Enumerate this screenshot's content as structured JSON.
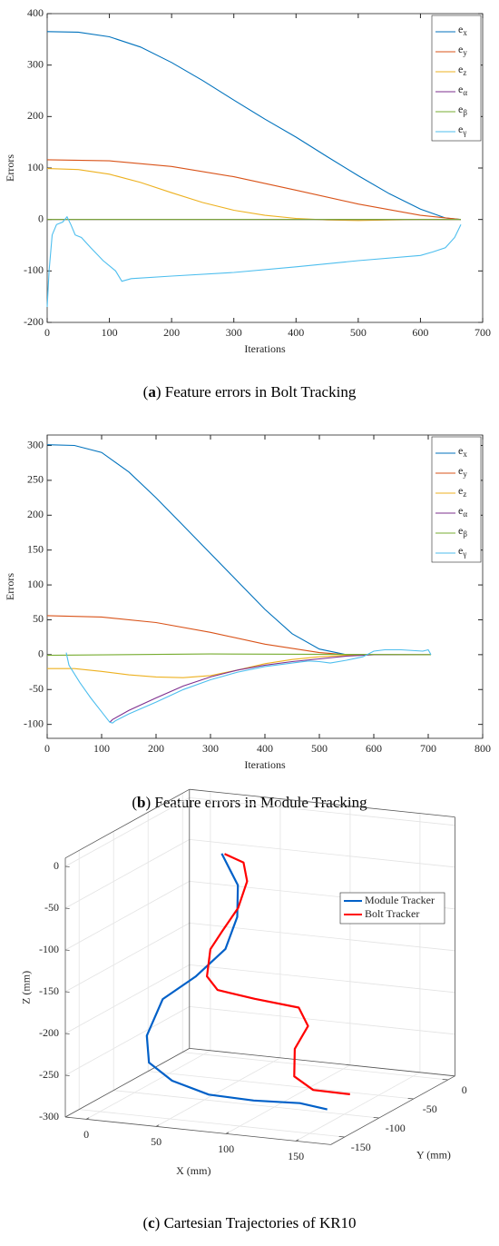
{
  "chart_data": [
    {
      "type": "line",
      "xlabel": "Iterations",
      "ylabel": "Errors",
      "caption": "(a) Feature errors in Bolt Tracking",
      "xlim": [
        0,
        700
      ],
      "xticks": [
        0,
        100,
        200,
        300,
        400,
        500,
        600,
        700
      ],
      "ylim": [
        -200,
        400
      ],
      "yticks": [
        -200,
        -100,
        0,
        100,
        200,
        300,
        400
      ],
      "grid": false,
      "legend": "northeast",
      "series": [
        {
          "name": "ex",
          "color": "#0072bd",
          "x": [
            0,
            50,
            100,
            150,
            200,
            250,
            300,
            350,
            400,
            450,
            500,
            550,
            600,
            640,
            665
          ],
          "values": [
            365,
            364,
            355,
            335,
            305,
            270,
            232,
            195,
            160,
            122,
            85,
            50,
            20,
            3,
            0
          ]
        },
        {
          "name": "ey",
          "color": "#d95319",
          "x": [
            0,
            100,
            200,
            300,
            400,
            500,
            600,
            665
          ],
          "values": [
            116,
            114,
            103,
            83,
            57,
            30,
            8,
            0
          ]
        },
        {
          "name": "ez",
          "color": "#edb120",
          "x": [
            0,
            50,
            100,
            150,
            200,
            250,
            300,
            350,
            400,
            450,
            500,
            550,
            600,
            665
          ],
          "values": [
            99,
            97,
            88,
            72,
            52,
            33,
            18,
            8,
            2,
            -1,
            -2,
            -1,
            0,
            0
          ]
        },
        {
          "name": "eα",
          "color": "#7e2f8e",
          "x": [
            0,
            665
          ],
          "values": [
            0,
            0
          ]
        },
        {
          "name": "eβ",
          "color": "#77ac30",
          "x": [
            0,
            665
          ],
          "values": [
            0,
            0
          ]
        },
        {
          "name": "eγ",
          "color": "#4dbeee",
          "x": [
            0,
            3,
            8,
            15,
            25,
            32,
            38,
            45,
            55,
            70,
            90,
            110,
            120,
            135,
            200,
            300,
            400,
            500,
            600,
            620,
            640,
            655,
            665
          ],
          "values": [
            -170,
            -100,
            -30,
            -10,
            -5,
            5,
            -10,
            -30,
            -35,
            -55,
            -80,
            -100,
            -120,
            -115,
            -110,
            -103,
            -92,
            -80,
            -70,
            -63,
            -55,
            -35,
            -10
          ]
        }
      ]
    },
    {
      "type": "line",
      "xlabel": "Iterations",
      "ylabel": "Errors",
      "caption": "(b) Feature errors in Module Tracking",
      "xlim": [
        0,
        800
      ],
      "xticks": [
        0,
        100,
        200,
        300,
        400,
        500,
        600,
        700,
        800
      ],
      "ylim": [
        -120,
        315
      ],
      "yticks": [
        -100,
        -50,
        0,
        50,
        100,
        150,
        200,
        250,
        300
      ],
      "grid": false,
      "legend": "northeast",
      "series": [
        {
          "name": "ex",
          "color": "#0072bd",
          "x": [
            0,
            50,
            100,
            150,
            200,
            250,
            300,
            350,
            400,
            450,
            500,
            550,
            600,
            705
          ],
          "values": [
            301,
            300,
            290,
            262,
            225,
            185,
            145,
            105,
            65,
            30,
            8,
            0,
            0,
            0
          ]
        },
        {
          "name": "ey",
          "color": "#d95319",
          "x": [
            0,
            100,
            200,
            300,
            400,
            500,
            550,
            705
          ],
          "values": [
            56,
            54,
            46,
            32,
            15,
            3,
            0,
            0
          ]
        },
        {
          "name": "ez",
          "color": "#edb120",
          "x": [
            0,
            50,
            100,
            150,
            200,
            250,
            300,
            350,
            400,
            450,
            500,
            550,
            600,
            705
          ],
          "values": [
            -20,
            -20,
            -24,
            -29,
            -32,
            -33,
            -30,
            -22,
            -13,
            -7,
            -3,
            -1,
            0,
            0
          ]
        },
        {
          "name": "eα",
          "color": "#7e2f8e",
          "x": [
            115,
            120,
            150,
            200,
            250,
            300,
            350,
            400,
            450,
            500,
            550,
            600,
            705
          ],
          "values": [
            -97,
            -93,
            -80,
            -62,
            -45,
            -32,
            -22,
            -15,
            -10,
            -6,
            -2,
            0,
            0
          ]
        },
        {
          "name": "eβ",
          "color": "#77ac30",
          "x": [
            0,
            300,
            705
          ],
          "values": [
            -1,
            1,
            0
          ]
        },
        {
          "name": "eγ",
          "color": "#4dbeee",
          "x": [
            35,
            40,
            60,
            80,
            100,
            115,
            120,
            125,
            150,
            200,
            250,
            300,
            350,
            400,
            450,
            480,
            500,
            520,
            550,
            580,
            600,
            620,
            650,
            690,
            700,
            705
          ],
          "values": [
            3,
            -15,
            -40,
            -62,
            -82,
            -97,
            -98,
            -95,
            -85,
            -68,
            -50,
            -36,
            -25,
            -17,
            -12,
            -9,
            -10,
            -12,
            -8,
            -3,
            5,
            7,
            7,
            5,
            7,
            0
          ]
        }
      ]
    },
    {
      "type": "line3d",
      "xlabel": "X (mm)",
      "ylabel": "Y (mm)",
      "zlabel": "Z (mm)",
      "caption": "(c) Cartesian Trajectories of KR10",
      "xlim": [
        -15,
        175
      ],
      "xticks": [
        0,
        50,
        100,
        150
      ],
      "ylim": [
        -170,
        10
      ],
      "yticks": [
        -150,
        -100,
        -50,
        0
      ],
      "zlim": [
        -300,
        10
      ],
      "zticks": [
        -300,
        -250,
        -200,
        -150,
        -100,
        -50,
        0
      ],
      "grid": true,
      "legend": "northeast",
      "series": [
        {
          "name": "Module Tracker",
          "color": "#0060c8",
          "x": [
            18,
            34,
            38,
            34,
            17,
            -2,
            -9,
            -3,
            18,
            68,
            105,
            143,
            170
          ],
          "y": [
            -10,
            -19,
            -28,
            -37,
            -46,
            -55,
            -64,
            -73,
            -82,
            -130,
            -140,
            -150,
            -165
          ],
          "z": [
            -52,
            -83,
            -116,
            -151,
            -183,
            -209,
            -250,
            -277,
            -291,
            -277,
            -273,
            -265,
            -261
          ]
        },
        {
          "name": "Bolt Tracker",
          "color": "#ff0000",
          "x": [
            20,
            39,
            47,
            46,
            40,
            37,
            40,
            53,
            85,
            122,
            134,
            130,
            135,
            154,
            169
          ],
          "y": [
            -10,
            -21,
            -32,
            -43,
            -54,
            -65,
            -76,
            -87,
            -98,
            -109,
            -120,
            -131,
            -142,
            -153,
            -130
          ],
          "z": [
            -52,
            -54,
            -70,
            -97,
            -121,
            -138,
            -165,
            -174,
            -174,
            -173,
            -188,
            -211,
            -238,
            -246,
            -259
          ]
        }
      ]
    }
  ]
}
